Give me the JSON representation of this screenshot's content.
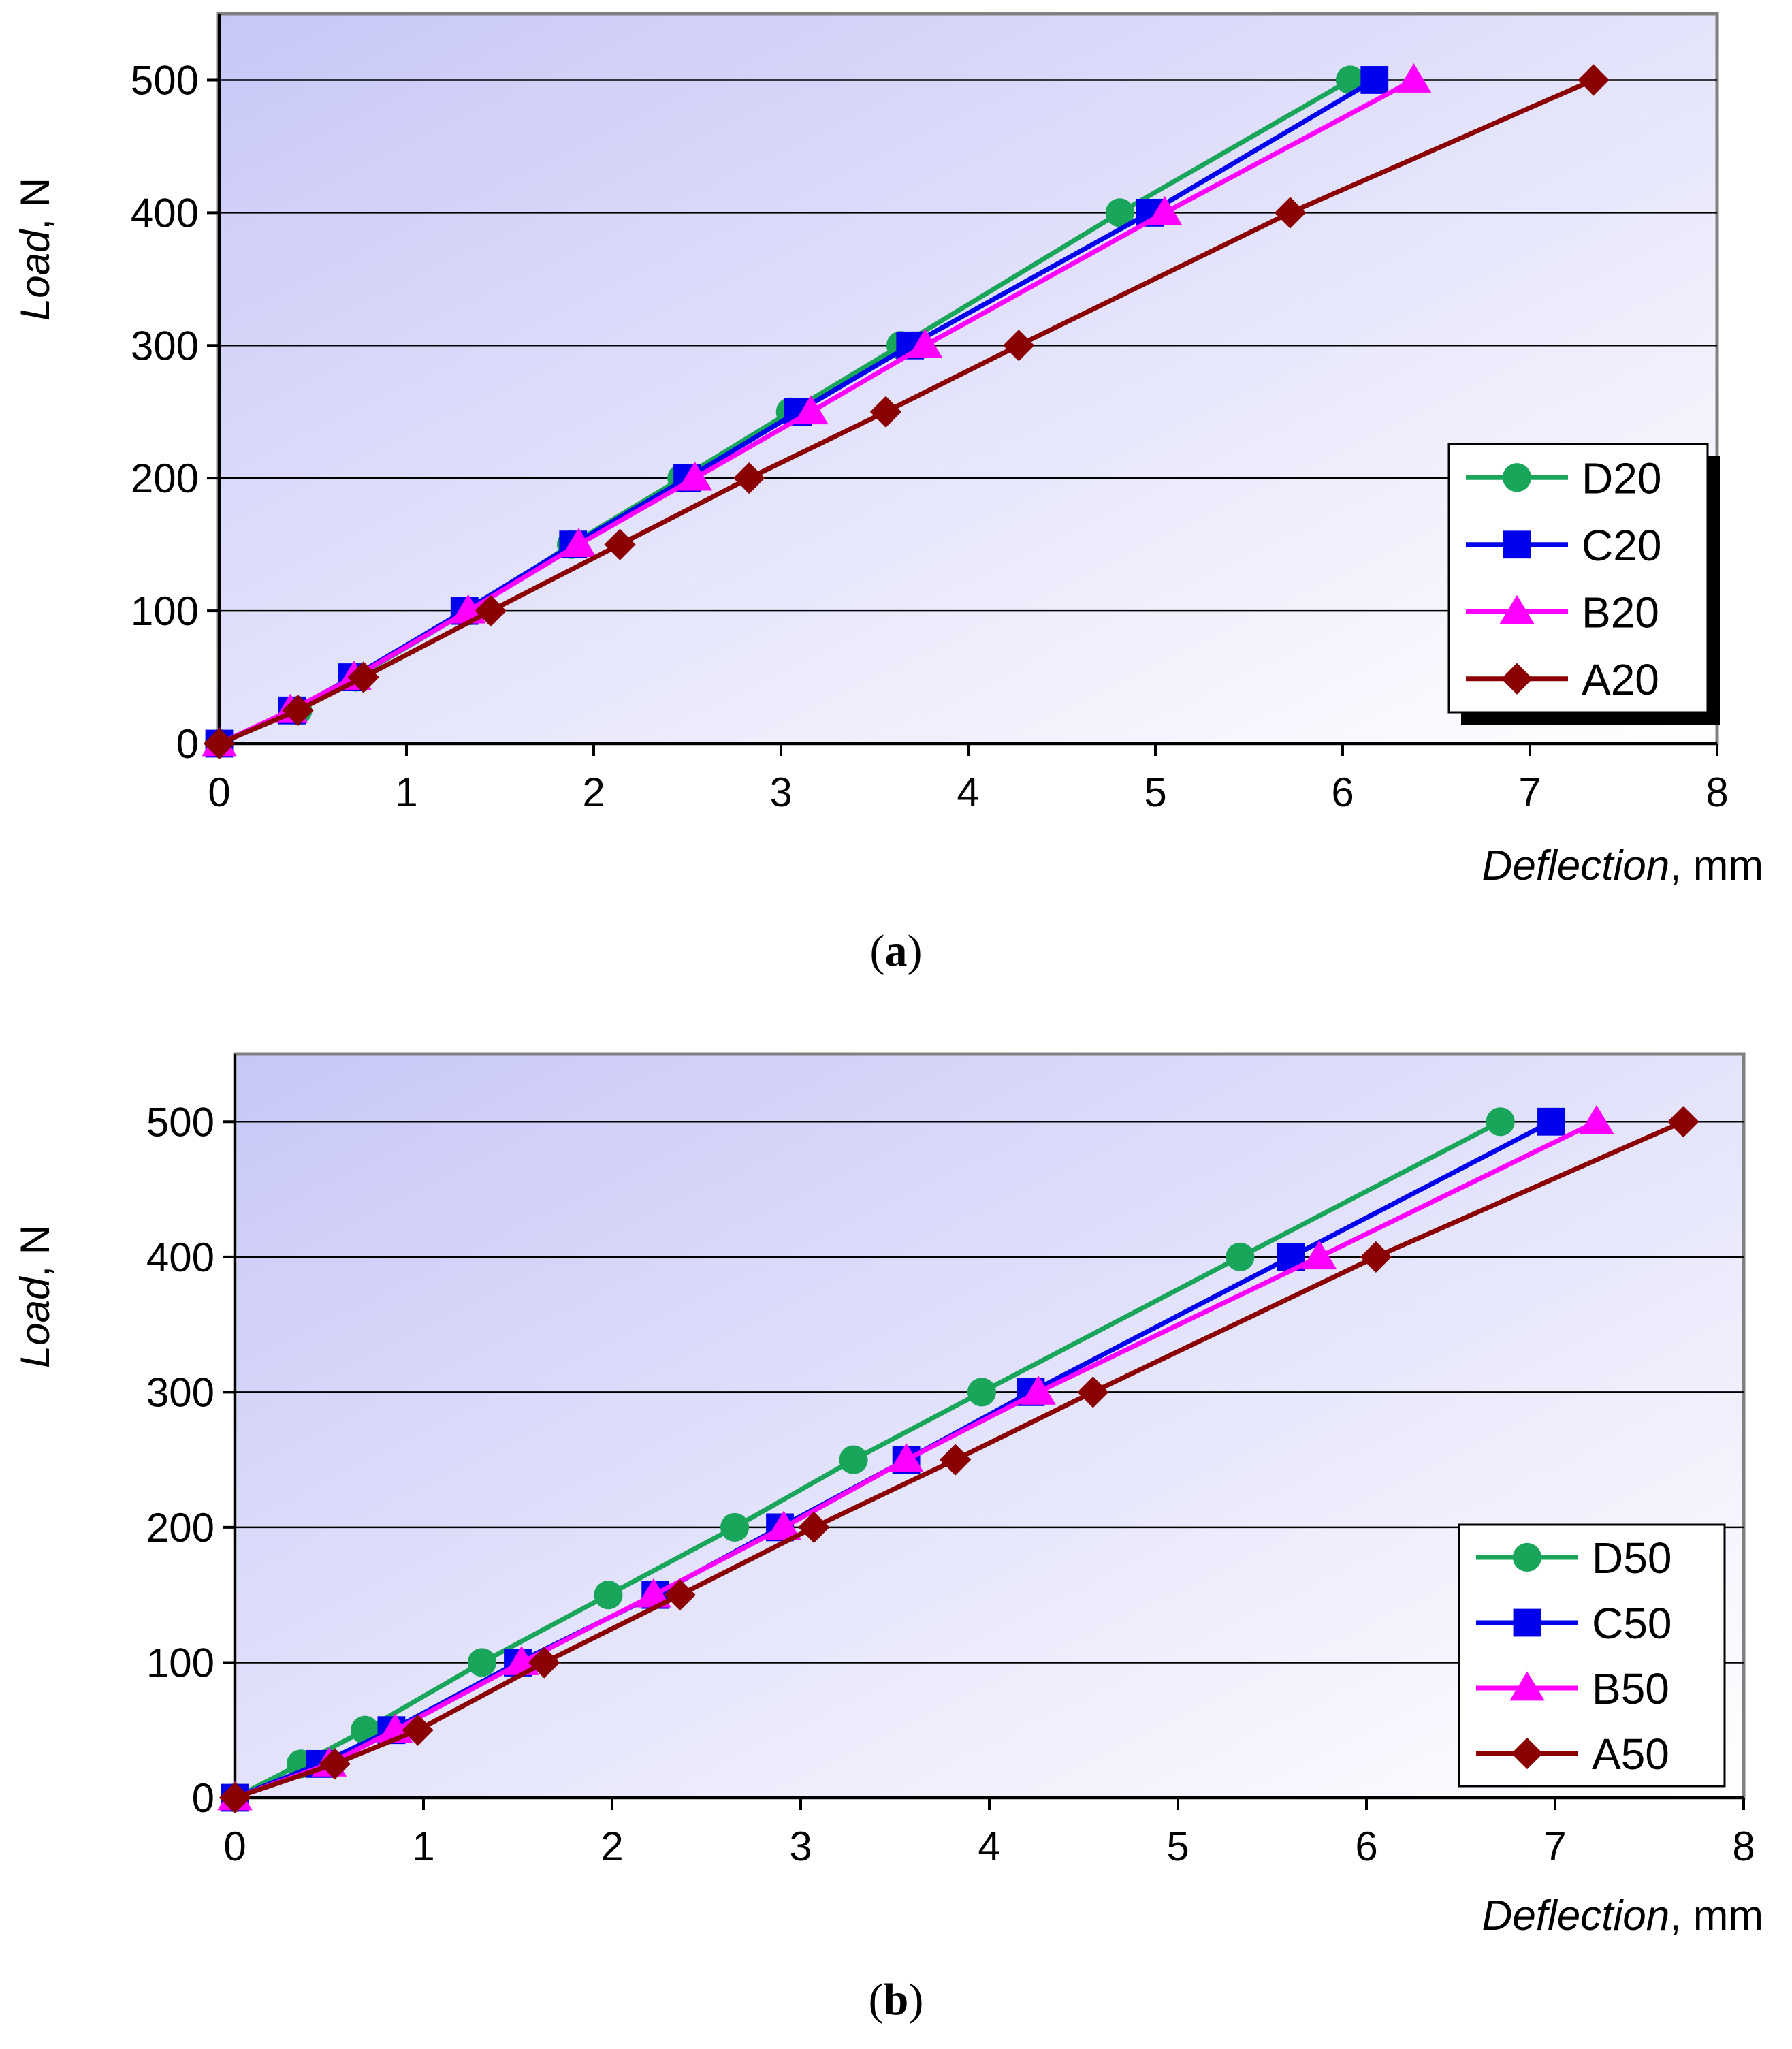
{
  "chart_data": [
    {
      "type": "line",
      "caption": "a",
      "xlabel": "Deflection",
      "xlabel_unit": ", mm",
      "ylabel": "Load",
      "ylabel_unit": ", N",
      "xlim": [
        0,
        8
      ],
      "ylim": [
        0,
        550
      ],
      "xticks": [
        0,
        1,
        2,
        3,
        4,
        5,
        6,
        7,
        8
      ],
      "yticks": [
        0,
        100,
        200,
        300,
        400,
        500
      ],
      "grid": "horizontal",
      "legend_position": "right",
      "series": [
        {
          "name": "D20",
          "marker": "circle",
          "color": "#1aa65a",
          "x": [
            0,
            0.42,
            0.73,
            1.33,
            1.88,
            2.47,
            3.05,
            3.64,
            4.81,
            6.04
          ],
          "y": [
            0,
            25,
            50,
            100,
            150,
            200,
            250,
            300,
            400,
            500
          ]
        },
        {
          "name": "C20",
          "marker": "square",
          "color": "#0000ee",
          "x": [
            0,
            0.39,
            0.71,
            1.31,
            1.89,
            2.5,
            3.09,
            3.69,
            4.97,
            6.17
          ],
          "y": [
            0,
            25,
            50,
            100,
            150,
            200,
            250,
            300,
            400,
            500
          ]
        },
        {
          "name": "B20",
          "marker": "triangle",
          "color": "#ff00ff",
          "x": [
            0,
            0.38,
            0.72,
            1.33,
            1.92,
            2.54,
            3.16,
            3.77,
            5.05,
            6.38
          ],
          "y": [
            0,
            25,
            50,
            100,
            150,
            200,
            250,
            300,
            400,
            500
          ]
        },
        {
          "name": "A20",
          "marker": "diamond",
          "color": "#8b0000",
          "x": [
            0,
            0.42,
            0.77,
            1.45,
            2.14,
            2.83,
            3.56,
            4.27,
            5.72,
            7.34
          ],
          "y": [
            0,
            25,
            50,
            100,
            150,
            200,
            250,
            300,
            400,
            500
          ]
        }
      ]
    },
    {
      "type": "line",
      "caption": "b",
      "xlabel": "Deflection",
      "xlabel_unit": ", mm",
      "ylabel": "Load",
      "ylabel_unit": ", N",
      "xlim": [
        0,
        8
      ],
      "ylim": [
        0,
        550
      ],
      "xticks": [
        0,
        1,
        2,
        3,
        4,
        5,
        6,
        7,
        8
      ],
      "yticks": [
        0,
        100,
        200,
        300,
        400,
        500
      ],
      "grid": "horizontal",
      "legend_position": "bottom-right",
      "series": [
        {
          "name": "D50",
          "marker": "circle",
          "color": "#1aa65a",
          "x": [
            0,
            0.35,
            0.69,
            1.31,
            1.98,
            2.65,
            3.28,
            3.96,
            5.33,
            6.71
          ],
          "y": [
            0,
            25,
            50,
            100,
            150,
            200,
            250,
            300,
            400,
            500
          ]
        },
        {
          "name": "C50",
          "marker": "square",
          "color": "#0000ee",
          "x": [
            0,
            0.45,
            0.83,
            1.5,
            2.23,
            2.89,
            3.56,
            4.22,
            5.6,
            6.98
          ],
          "y": [
            0,
            25,
            50,
            100,
            150,
            200,
            250,
            300,
            400,
            500
          ]
        },
        {
          "name": "B50",
          "marker": "triangle",
          "color": "#ff00ff",
          "x": [
            0,
            0.5,
            0.85,
            1.52,
            2.22,
            2.91,
            3.56,
            4.26,
            5.75,
            7.22
          ],
          "y": [
            0,
            25,
            50,
            100,
            150,
            200,
            250,
            300,
            400,
            500
          ]
        },
        {
          "name": "A50",
          "marker": "diamond",
          "color": "#8b0000",
          "x": [
            0,
            0.53,
            0.97,
            1.64,
            2.36,
            3.07,
            3.82,
            4.55,
            6.05,
            7.68
          ],
          "y": [
            0,
            25,
            50,
            100,
            150,
            200,
            250,
            300,
            400,
            500
          ]
        }
      ]
    }
  ]
}
